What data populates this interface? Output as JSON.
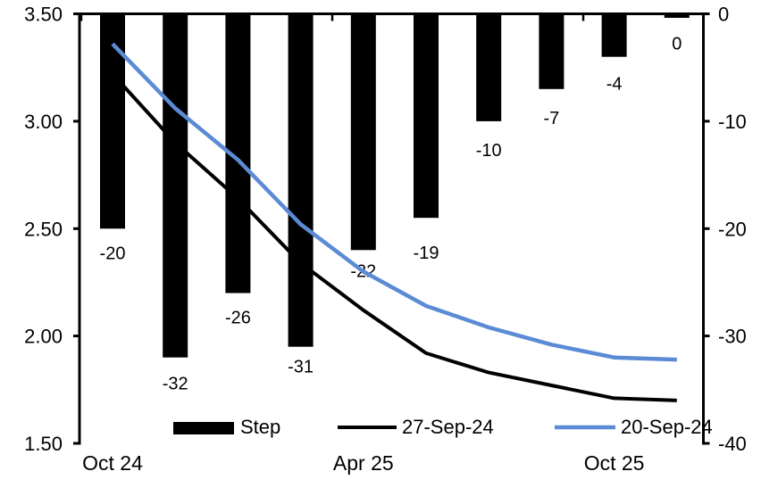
{
  "chart_data": {
    "type": "combo_bar_line",
    "title": "",
    "n_categories": 10,
    "x_tick_labels": [
      {
        "label": "Oct 24",
        "category_index": 0
      },
      {
        "label": "Apr 25",
        "category_index": 4
      },
      {
        "label": "Oct 25",
        "category_index": 8
      }
    ],
    "bar_series": {
      "name": "Step",
      "axis": "right",
      "unit": "bp",
      "color": "#000000",
      "values": [
        -20,
        -32,
        -26,
        -31,
        -22,
        -19,
        -10,
        -7,
        -4,
        0
      ],
      "data_labels": [
        "-20",
        "-32",
        "-26",
        "-31",
        "-22",
        "-19",
        "-10",
        "-7",
        "-4",
        "0"
      ]
    },
    "line_series": [
      {
        "name": "27-Sep-24",
        "axis": "left",
        "color": "#000000",
        "values": [
          3.22,
          2.9,
          2.64,
          2.34,
          2.12,
          1.92,
          1.83,
          1.77,
          1.71,
          1.7
        ]
      },
      {
        "name": "20-Sep-24",
        "axis": "left",
        "color": "#5b8bd5",
        "values": [
          3.36,
          3.06,
          2.82,
          2.52,
          2.3,
          2.14,
          2.04,
          1.96,
          1.9,
          1.89
        ]
      }
    ],
    "left_axis": {
      "min": 1.5,
      "max": 3.5,
      "tick_labels": [
        "3.50",
        "3.00",
        "2.50",
        "2.00",
        "1.50"
      ]
    },
    "right_axis": {
      "min": -40,
      "max": 0,
      "tick_labels": [
        "0",
        "-10",
        "-20",
        "-30",
        "-40"
      ]
    },
    "legend": {
      "position": "bottom-inside",
      "items": [
        "Step",
        "27-Sep-24",
        "20-Sep-24"
      ]
    },
    "layout_hints": {
      "grid": "off",
      "bar_label_offsets": [
        19,
        21,
        19,
        14,
        15,
        31,
        24,
        24,
        22,
        25
      ],
      "axis_color": "#000000",
      "background": "#ffffff"
    }
  }
}
